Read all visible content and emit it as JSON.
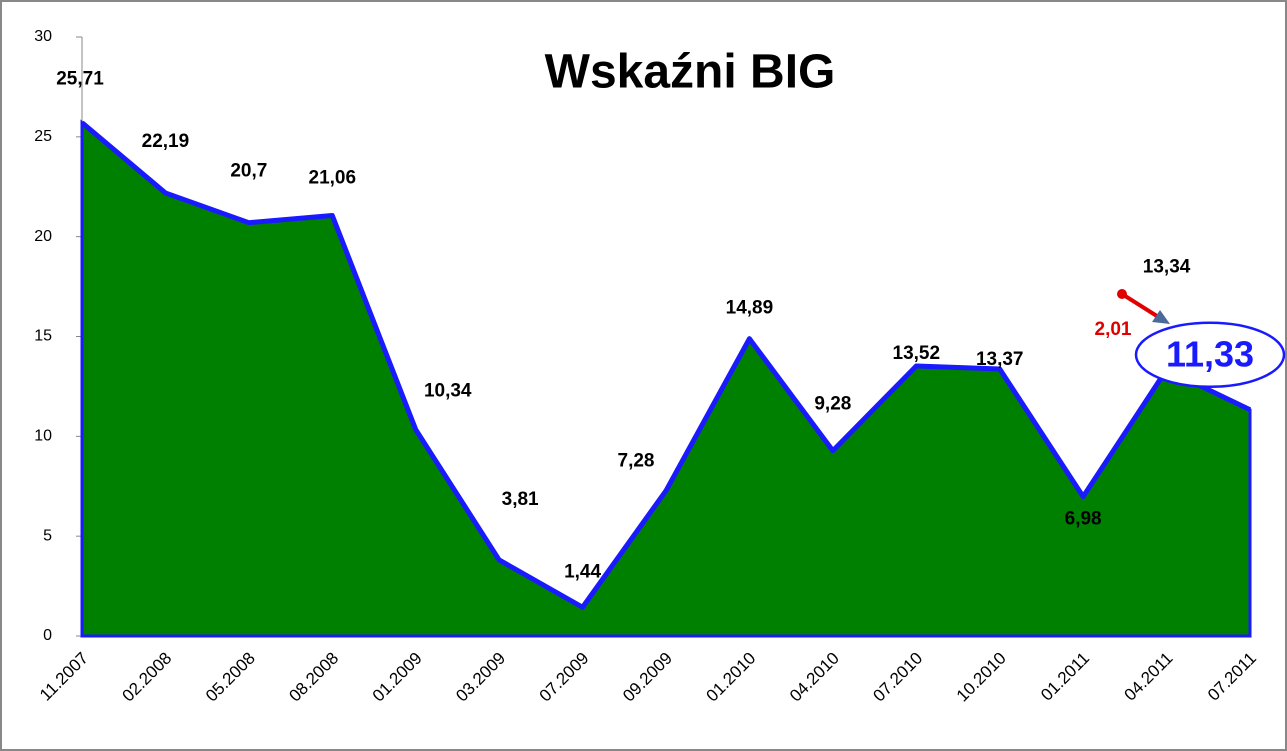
{
  "chart_data": {
    "type": "area",
    "title": "Wskaźni BIG",
    "categories": [
      "11.2007",
      "02.2008",
      "05.2008",
      "08.2008",
      "01.2009",
      "03.2009",
      "07.2009",
      "09.2009",
      "01.2010",
      "04.2010",
      "07.2010",
      "10.2010",
      "01.2011",
      "04.2011",
      "07.2011"
    ],
    "values": [
      25.71,
      22.19,
      20.7,
      21.06,
      10.34,
      3.81,
      1.44,
      7.28,
      14.89,
      9.28,
      13.52,
      13.37,
      6.98,
      13.34,
      11.33
    ],
    "value_labels": [
      "25,71",
      "22,19",
      "20,7",
      "21,06",
      "10,34",
      "3,81",
      "1,44",
      "7,28",
      "14,89",
      "9,28",
      "13,52",
      "13,37",
      "6,98",
      "13,34",
      "11,33"
    ],
    "color": "#008000",
    "line_color": "#1a1aff",
    "annotation": "2,01",
    "ylim": [
      0,
      30
    ],
    "yticks": [
      0,
      5,
      10,
      15,
      20,
      25,
      30
    ],
    "grid": false
  }
}
